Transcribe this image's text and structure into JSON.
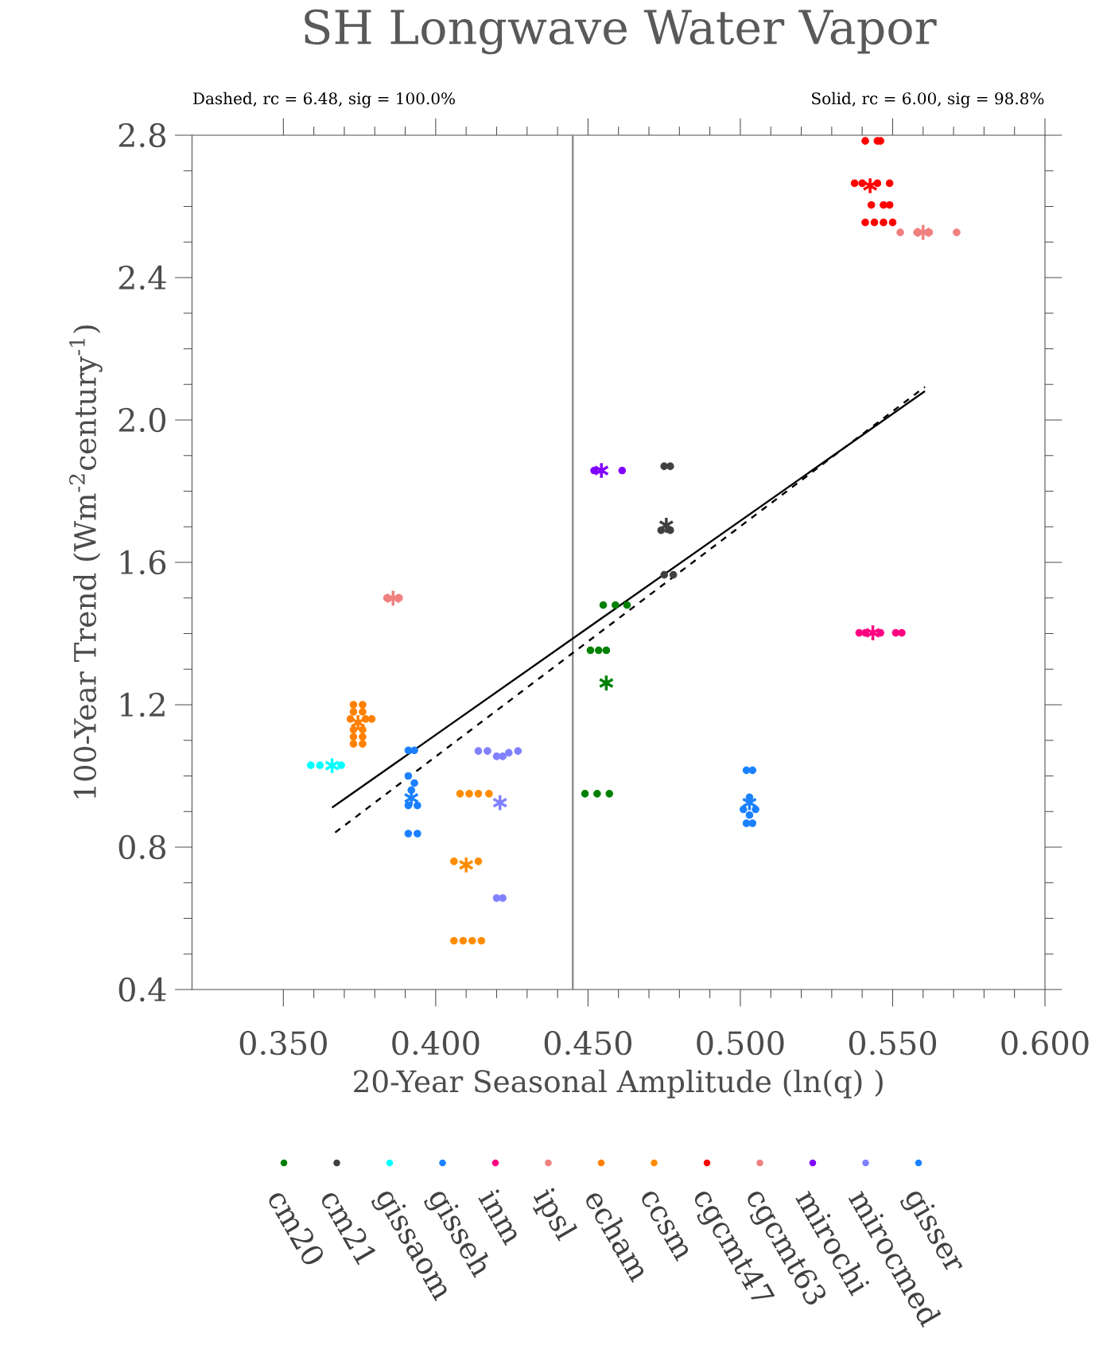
{
  "chart_data": {
    "type": "scatter",
    "title": "SH Longwave Water Vapor",
    "xlabel": "20-Year Seasonal Amplitude (ln(q)   )",
    "ylabel": "100-Year Trend (Wm$^{-2}$century$^{-1}$)",
    "annotations": [
      "Dashed, rc = 6.48, sig = 100.0%",
      "Solid, rc = 6.00, sig = 98.8%"
    ],
    "xlim": [
      0.32,
      0.6
    ],
    "ylim": [
      0.4,
      2.8
    ],
    "xticks": [
      {
        "value": 0.35,
        "label": "0.350"
      },
      {
        "value": 0.4,
        "label": "0.400"
      },
      {
        "value": 0.45,
        "label": "0.450"
      },
      {
        "value": 0.5,
        "label": "0.500"
      },
      {
        "value": 0.55,
        "label": "0.550"
      },
      {
        "value": 0.6,
        "label": "0.600"
      }
    ],
    "yticks": [
      {
        "value": 0.4,
        "label": "0.4"
      },
      {
        "value": 0.8,
        "label": "0.8"
      },
      {
        "value": 1.2,
        "label": "1.2"
      },
      {
        "value": 1.6,
        "label": "1.6"
      },
      {
        "value": 2.0,
        "label": "2.0"
      },
      {
        "value": 2.4,
        "label": "2.4"
      },
      {
        "value": 2.8,
        "label": "2.8"
      }
    ],
    "legend": "bottom",
    "grid": false,
    "ref_lines": [
      {
        "axis": "x",
        "value": 0.445,
        "color": "#808080"
      }
    ],
    "series": [
      {
        "name": "cm20",
        "color": "#008000",
        "marker": "circle",
        "x": [
          0.455,
          0.459,
          0.4628,
          0.4508,
          0.4535,
          0.456,
          0.449,
          0.453,
          0.457
        ],
        "values": [
          1.48,
          1.48,
          1.48,
          1.353,
          1.353,
          1.353,
          0.95,
          0.95,
          0.95
        ]
      },
      {
        "name": "cm21",
        "color": "#404040",
        "marker": "circle",
        "x": [
          0.475,
          0.477,
          0.474,
          0.477,
          0.475,
          0.478
        ],
        "values": [
          1.87,
          1.87,
          1.69,
          1.69,
          1.565,
          1.565
        ]
      },
      {
        "name": "gissaom",
        "color": "#00ffff",
        "marker": "circle",
        "x": [
          0.359,
          0.362,
          0.369
        ],
        "values": [
          1.03,
          1.03,
          1.03
        ]
      },
      {
        "name": "gisseh",
        "color": "#1a80ff",
        "marker": "circle",
        "x": [
          0.391,
          0.393,
          0.391,
          0.393,
          0.392,
          0.391,
          0.394,
          0.391,
          0.394
        ],
        "values": [
          1.072,
          1.072,
          1.0,
          0.98,
          0.96,
          0.917,
          0.917,
          0.838,
          0.838
        ]
      },
      {
        "name": "inm",
        "color": "#ff0080",
        "marker": "circle",
        "x": [
          0.539,
          0.541,
          0.546,
          0.551,
          0.553
        ],
        "values": [
          1.402,
          1.402,
          1.402,
          1.402,
          1.402
        ]
      },
      {
        "name": "ipsl",
        "color": "#f08080",
        "marker": "circle",
        "x": [
          0.384,
          0.388
        ],
        "values": [
          1.5,
          1.5
        ]
      },
      {
        "name": "echam",
        "color": "#ff8000",
        "marker": "circle",
        "x": [
          0.373,
          0.376,
          0.373,
          0.376,
          0.372,
          0.377,
          0.379,
          0.373,
          0.376,
          0.373,
          0.376,
          0.373,
          0.376
        ],
        "values": [
          1.2,
          1.2,
          1.18,
          1.18,
          1.16,
          1.16,
          1.16,
          1.13,
          1.13,
          1.11,
          1.11,
          1.09,
          1.09
        ]
      },
      {
        "name": "ccsm",
        "color": "#ff8c00",
        "marker": "circle",
        "x": [
          0.408,
          0.411,
          0.414,
          0.4175,
          0.406,
          0.414,
          0.406,
          0.409,
          0.412,
          0.415
        ],
        "values": [
          0.95,
          0.95,
          0.95,
          0.95,
          0.76,
          0.76,
          0.537,
          0.537,
          0.537,
          0.537
        ]
      },
      {
        "name": "cgcmt47",
        "color": "#ff0000",
        "marker": "circle",
        "x": [
          0.541,
          0.545,
          0.546,
          0.5375,
          0.54,
          0.545,
          0.549,
          0.543,
          0.547,
          0.549,
          0.541,
          0.544,
          0.547,
          0.55
        ],
        "values": [
          2.784,
          2.784,
          2.784,
          2.665,
          2.665,
          2.665,
          2.665,
          2.604,
          2.604,
          2.604,
          2.555,
          2.555,
          2.555,
          2.555
        ]
      },
      {
        "name": "cgcmt63",
        "color": "#f08080",
        "marker": "circle",
        "x": [
          0.5525,
          0.558,
          0.562,
          0.571
        ],
        "values": [
          2.527,
          2.527,
          2.527,
          2.527
        ]
      },
      {
        "name": "mirochi",
        "color": "#8000ff",
        "marker": "circle",
        "x": [
          0.452,
          0.4612
        ],
        "values": [
          1.858,
          1.858
        ]
      },
      {
        "name": "mirocmed",
        "color": "#8080ff",
        "marker": "circle",
        "x": [
          0.414,
          0.417,
          0.42,
          0.424,
          0.427,
          0.422,
          0.42,
          0.422
        ],
        "values": [
          1.07,
          1.07,
          1.055,
          1.065,
          1.07,
          1.055,
          0.657,
          0.657
        ]
      },
      {
        "name": "gisser",
        "color": "#1a80ff",
        "marker": "circle",
        "x": [
          0.502,
          0.504,
          0.503,
          0.501,
          0.505,
          0.503,
          0.502,
          0.504
        ],
        "values": [
          1.016,
          1.016,
          0.94,
          0.906,
          0.906,
          0.89,
          0.867,
          0.867
        ]
      },
      {
        "color": "#008000",
        "marker": "cross",
        "x": [
          0.456
        ],
        "values": [
          1.261
        ]
      },
      {
        "color": "#404040",
        "marker": "cross",
        "x": [
          0.4757
        ],
        "values": [
          1.704
        ]
      },
      {
        "color": "#00ffff",
        "marker": "cross",
        "x": [
          0.366
        ],
        "values": [
          1.029
        ]
      },
      {
        "color": "#1a80ff",
        "marker": "cross",
        "x": [
          0.392
        ],
        "values": [
          0.938
        ]
      },
      {
        "color": "#ff0080",
        "marker": "cross",
        "x": [
          0.5435
        ],
        "values": [
          1.402
        ]
      },
      {
        "color": "#f08080",
        "marker": "cross",
        "x": [
          0.386
        ],
        "values": [
          1.499
        ]
      },
      {
        "color": "#ff8000",
        "marker": "cross",
        "x": [
          0.3745
        ],
        "values": [
          1.15
        ]
      },
      {
        "color": "#ff8c00",
        "marker": "cross",
        "x": [
          0.41
        ],
        "values": [
          0.75
        ]
      },
      {
        "color": "#ff0000",
        "marker": "cross",
        "x": [
          0.5426
        ],
        "values": [
          2.658
        ]
      },
      {
        "color": "#f08080",
        "marker": "cross",
        "x": [
          0.56
        ],
        "values": [
          2.527
        ]
      },
      {
        "color": "#8000ff",
        "marker": "cross",
        "x": [
          0.4544
        ],
        "values": [
          1.858
        ]
      },
      {
        "color": "#8080ff",
        "marker": "cross",
        "x": [
          0.4211
        ],
        "values": [
          0.925
        ]
      },
      {
        "color": "#1a80ff",
        "marker": "cross",
        "x": [
          0.503
        ],
        "values": [
          0.925
        ]
      },
      {
        "type": "line",
        "color": "#000000",
        "marker": "none",
        "line_style": "solid",
        "x": [
          0.366,
          0.5606
        ],
        "values": [
          0.911,
          2.081
        ]
      },
      {
        "type": "line",
        "color": "#000000",
        "marker": "none",
        "line_style": "dashed",
        "x": [
          0.367,
          0.5606
        ],
        "values": [
          0.841,
          2.093
        ]
      }
    ]
  }
}
